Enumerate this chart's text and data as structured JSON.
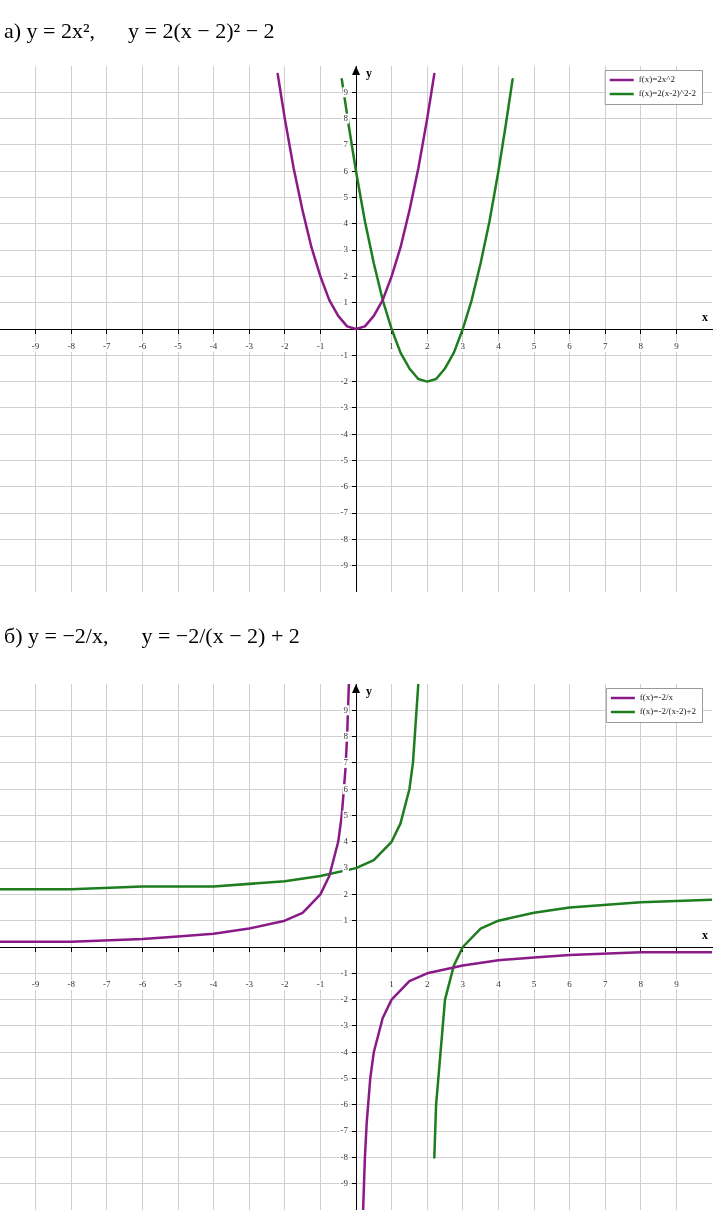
{
  "chart_data": [
    {
      "type": "line",
      "title": "а) y = 2x²,      y = 2(x − 2)² − 2",
      "xlabel": "x",
      "ylabel": "y",
      "xlim": [
        -10,
        10
      ],
      "ylim": [
        -10,
        10
      ],
      "xticks": [
        -9,
        -8,
        -7,
        -6,
        -5,
        -4,
        -3,
        -2,
        -1,
        1,
        2,
        3,
        4,
        5,
        6,
        7,
        8,
        9
      ],
      "yticks": [
        -9,
        -8,
        -7,
        -6,
        -5,
        -4,
        -3,
        -2,
        -1,
        1,
        2,
        3,
        4,
        5,
        6,
        7,
        8,
        9
      ],
      "grid": true,
      "legend": "top right",
      "series": [
        {
          "name": "f(x)=2x^2",
          "color": "#8b1a89",
          "x": [
            -2.2,
            -2,
            -1.75,
            -1.5,
            -1.25,
            -1,
            -0.75,
            -0.5,
            -0.25,
            0,
            0.25,
            0.5,
            0.75,
            1,
            1.25,
            1.5,
            1.75,
            2,
            2.2
          ],
          "values": [
            9.7,
            8,
            6.1,
            4.5,
            3.1,
            2,
            1.1,
            0.5,
            0.1,
            0,
            0.1,
            0.5,
            1.1,
            2,
            3.1,
            4.5,
            6.1,
            8,
            9.7
          ]
        },
        {
          "name": "f(x)=2(x-2)^2-2",
          "color": "#1e7d1e",
          "x": [
            -0.4,
            -0.2,
            0,
            0.25,
            0.5,
            0.75,
            1,
            1.25,
            1.5,
            1.75,
            2,
            2.25,
            2.5,
            2.75,
            3,
            3.25,
            3.5,
            3.75,
            4,
            4.2,
            4.4
          ],
          "values": [
            9.5,
            7.7,
            6,
            4.1,
            2.5,
            1.1,
            0,
            -0.9,
            -1.5,
            -1.9,
            -2,
            -1.9,
            -1.5,
            -0.9,
            0,
            1.1,
            2.5,
            4.1,
            6,
            7.7,
            9.5
          ]
        }
      ]
    },
    {
      "type": "line",
      "title": "б) y = −2/x,      y = −2/(x − 2) + 2",
      "xlabel": "x",
      "ylabel": "y",
      "xlim": [
        -10,
        10
      ],
      "ylim": [
        -10,
        10
      ],
      "xticks": [
        -9,
        -8,
        -7,
        -6,
        -5,
        -4,
        -3,
        -2,
        -1,
        1,
        2,
        3,
        4,
        5,
        6,
        7,
        8,
        9
      ],
      "yticks": [
        -9,
        -8,
        -7,
        -6,
        -5,
        -4,
        -3,
        -2,
        -1,
        1,
        2,
        3,
        4,
        5,
        6,
        7,
        8,
        9
      ],
      "grid": true,
      "legend": "top right",
      "series": [
        {
          "name": "f(x)=-2/x",
          "color": "#8b1a89",
          "x": [
            -10,
            -8,
            -6,
            -5,
            -4,
            -3,
            -2,
            -1.5,
            -1,
            -0.75,
            -0.5,
            -0.4,
            -0.3,
            -0.25,
            -0.2,
            0,
            0.2,
            0.25,
            0.3,
            0.4,
            0.5,
            0.75,
            1,
            1.5,
            2,
            3,
            4,
            5,
            6,
            8,
            10
          ],
          "values": [
            0.2,
            0.2,
            0.3,
            0.4,
            0.5,
            0.7,
            1,
            1.3,
            2,
            2.7,
            4,
            5,
            6.7,
            8,
            10,
            null,
            -10,
            -8,
            -6.7,
            -5,
            -4,
            -2.7,
            -2,
            -1.3,
            -1,
            -0.7,
            -0.5,
            -0.4,
            -0.3,
            -0.2,
            -0.2
          ]
        },
        {
          "name": "f(x)=-2/(x-2)+2",
          "color": "#1e7d1e",
          "x": [
            -10,
            -8,
            -6,
            -4,
            -2,
            -1,
            0,
            0.5,
            1,
            1.25,
            1.5,
            1.6,
            1.75,
            2,
            2.2,
            2.25,
            2.5,
            2.75,
            3,
            3.5,
            4,
            5,
            6,
            8,
            10
          ],
          "values": [
            2.2,
            2.2,
            2.3,
            2.3,
            2.5,
            2.7,
            3,
            3.3,
            4,
            4.7,
            6,
            7,
            10,
            null,
            -8,
            -6,
            -2,
            -0.7,
            0,
            0.7,
            1,
            1.3,
            1.5,
            1.7,
            1.8
          ]
        }
      ]
    }
  ]
}
